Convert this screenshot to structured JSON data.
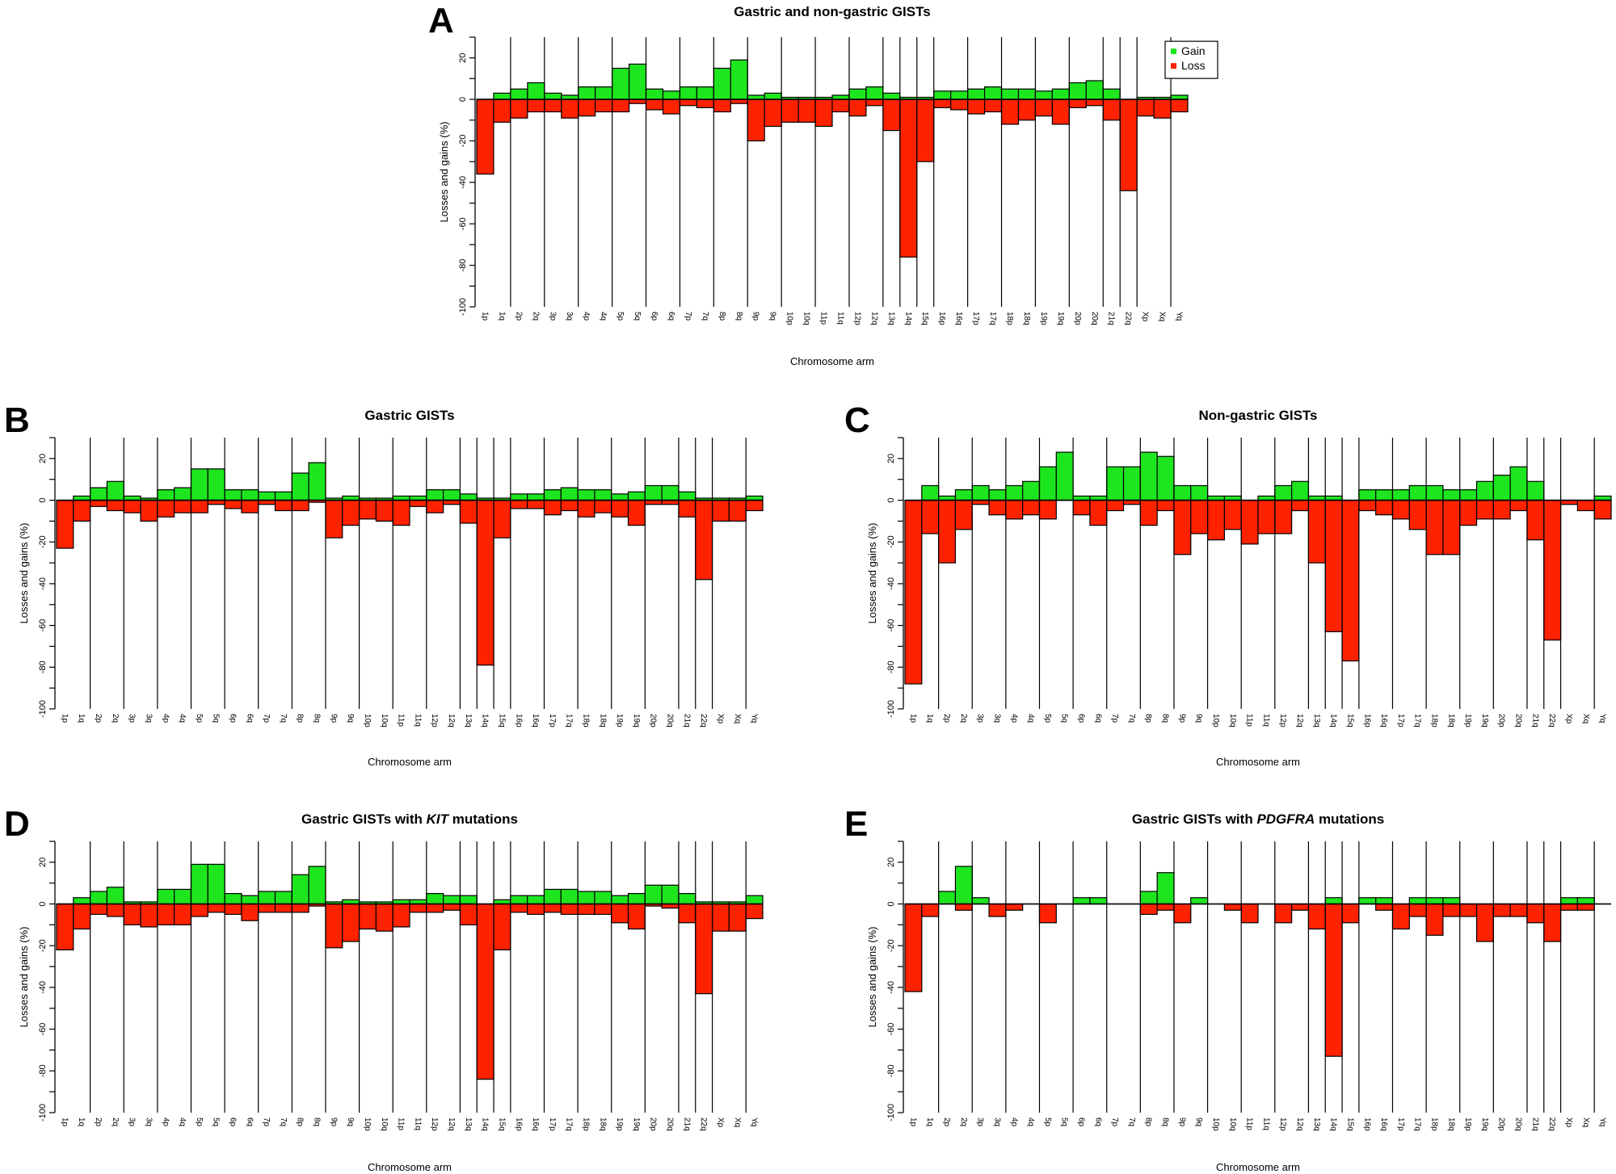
{
  "arms": [
    "1p",
    "1q",
    "2p",
    "2q",
    "3p",
    "3q",
    "4p",
    "4q",
    "5p",
    "5q",
    "6p",
    "6q",
    "7p",
    "7q",
    "8p",
    "8q",
    "9p",
    "9q",
    "10p",
    "10q",
    "11p",
    "11q",
    "12p",
    "12q",
    "13q",
    "14q",
    "15q",
    "16p",
    "16q",
    "17p",
    "17q",
    "18p",
    "18q",
    "19p",
    "19q",
    "20p",
    "20q",
    "21q",
    "22q",
    "Xp",
    "Xq",
    "Yq"
  ],
  "colors": {
    "gain": "#1ee61e",
    "loss": "#ff2200"
  },
  "chart_data": [
    {
      "panel": "A",
      "type": "bar",
      "title": {
        "pre": "Gastric and non-gastric GISTs",
        "italic": "",
        "post": ""
      },
      "xlabel": "Chromosome arm",
      "ylabel": "Losses and gains (%)",
      "ylim": [
        -100,
        30
      ],
      "yticks": [
        20,
        0,
        -20,
        -40,
        -60,
        -80,
        -100
      ],
      "legend": {
        "position": "top-right",
        "entries": [
          "Gain",
          "Loss"
        ]
      },
      "series": [
        {
          "name": "Gain",
          "values": [
            0,
            3,
            5,
            8,
            3,
            2,
            6,
            6,
            15,
            17,
            5,
            4,
            6,
            6,
            15,
            19,
            2,
            3,
            1,
            1,
            1,
            2,
            5,
            6,
            3,
            1,
            1,
            4,
            4,
            5,
            6,
            5,
            5,
            4,
            5,
            8,
            9,
            5,
            0,
            1,
            1,
            2
          ]
        },
        {
          "name": "Loss",
          "values": [
            -36,
            -11,
            -9,
            -6,
            -6,
            -9,
            -8,
            -6,
            -6,
            -2,
            -5,
            -7,
            -3,
            -4,
            -6,
            -2,
            -20,
            -13,
            -11,
            -11,
            -13,
            -6,
            -8,
            -3,
            -15,
            -76,
            -30,
            -4,
            -5,
            -7,
            -6,
            -12,
            -10,
            -8,
            -12,
            -4,
            -3,
            -10,
            -44,
            -8,
            -9,
            -6
          ]
        }
      ]
    },
    {
      "panel": "B",
      "type": "bar",
      "title": {
        "pre": "Gastric GISTs",
        "italic": "",
        "post": ""
      },
      "xlabel": "Chromosome arm",
      "ylabel": "Losses and gains (%)",
      "ylim": [
        -100,
        30
      ],
      "yticks": [
        20,
        0,
        -20,
        -40,
        -60,
        -80,
        -100
      ],
      "series": [
        {
          "name": "Gain",
          "values": [
            0,
            2,
            6,
            9,
            2,
            1,
            5,
            6,
            15,
            15,
            5,
            5,
            4,
            4,
            13,
            18,
            1,
            2,
            1,
            1,
            2,
            2,
            5,
            5,
            3,
            1,
            1,
            3,
            3,
            5,
            6,
            5,
            5,
            3,
            4,
            7,
            7,
            4,
            1,
            1,
            1,
            2
          ]
        },
        {
          "name": "Loss",
          "values": [
            -23,
            -10,
            -3,
            -5,
            -6,
            -10,
            -8,
            -6,
            -6,
            -2,
            -4,
            -6,
            -2,
            -5,
            -5,
            -1,
            -18,
            -12,
            -9,
            -10,
            -12,
            -3,
            -6,
            -2,
            -11,
            -79,
            -18,
            -4,
            -4,
            -7,
            -5,
            -8,
            -6,
            -8,
            -12,
            -2,
            -2,
            -8,
            -38,
            -10,
            -10,
            -5
          ]
        }
      ]
    },
    {
      "panel": "C",
      "type": "bar",
      "title": {
        "pre": "Non-gastric GISTs",
        "italic": "",
        "post": ""
      },
      "xlabel": "Chromosome arm",
      "ylabel": "Losses and gains (%)",
      "ylim": [
        -100,
        30
      ],
      "yticks": [
        20,
        0,
        -20,
        -40,
        -60,
        -80,
        -100
      ],
      "series": [
        {
          "name": "Gain",
          "values": [
            0,
            7,
            2,
            5,
            7,
            5,
            7,
            9,
            16,
            23,
            2,
            2,
            16,
            16,
            23,
            21,
            7,
            7,
            2,
            2,
            0,
            2,
            7,
            9,
            2,
            2,
            0,
            5,
            5,
            5,
            7,
            7,
            5,
            5,
            9,
            12,
            16,
            9,
            0,
            0,
            0,
            2
          ]
        },
        {
          "name": "Loss",
          "values": [
            -88,
            -16,
            -30,
            -14,
            -2,
            -7,
            -9,
            -7,
            -9,
            0,
            -7,
            -12,
            -5,
            -2,
            -12,
            -5,
            -26,
            -16,
            -19,
            -14,
            -21,
            -16,
            -16,
            -5,
            -30,
            -63,
            -77,
            -5,
            -7,
            -9,
            -14,
            -26,
            -26,
            -12,
            -9,
            -9,
            -5,
            -19,
            -67,
            -2,
            -5,
            -9
          ]
        }
      ]
    },
    {
      "panel": "D",
      "type": "bar",
      "title": {
        "pre": "Gastric GISTs with ",
        "italic": "KIT",
        "post": " mutations"
      },
      "xlabel": "Chromosome arm",
      "ylabel": "Losses and gains (%)",
      "ylim": [
        -100,
        30
      ],
      "yticks": [
        20,
        0,
        -20,
        -40,
        -60,
        -80,
        -100
      ],
      "series": [
        {
          "name": "Gain",
          "values": [
            0,
            3,
            6,
            8,
            1,
            1,
            7,
            7,
            19,
            19,
            5,
            4,
            6,
            6,
            14,
            18,
            1,
            2,
            1,
            1,
            2,
            2,
            5,
            4,
            4,
            0,
            2,
            4,
            4,
            7,
            7,
            6,
            6,
            4,
            5,
            9,
            9,
            5,
            1,
            1,
            1,
            4
          ]
        },
        {
          "name": "Loss",
          "values": [
            -22,
            -12,
            -5,
            -6,
            -10,
            -11,
            -10,
            -10,
            -6,
            -4,
            -5,
            -8,
            -4,
            -4,
            -4,
            -1,
            -21,
            -18,
            -12,
            -13,
            -11,
            -4,
            -4,
            -3,
            -10,
            -84,
            -22,
            -4,
            -5,
            -4,
            -5,
            -5,
            -5,
            -9,
            -12,
            -1,
            -2,
            -9,
            -43,
            -13,
            -13,
            -7
          ]
        }
      ]
    },
    {
      "panel": "E",
      "type": "bar",
      "title": {
        "pre": "Gastric GISTs with ",
        "italic": "PDGFRA",
        "post": " mutations"
      },
      "xlabel": "Chromosome arm",
      "ylabel": "Losses and gains (%)",
      "ylim": [
        -100,
        30
      ],
      "yticks": [
        20,
        0,
        -20,
        -40,
        -60,
        -80,
        -100
      ],
      "series": [
        {
          "name": "Gain",
          "values": [
            0,
            0,
            6,
            18,
            3,
            0,
            0,
            0,
            0,
            0,
            3,
            3,
            0,
            0,
            6,
            15,
            0,
            3,
            0,
            0,
            0,
            0,
            0,
            0,
            0,
            3,
            0,
            3,
            3,
            0,
            3,
            3,
            3,
            0,
            0,
            0,
            0,
            0,
            0,
            3,
            3,
            0
          ]
        },
        {
          "name": "Loss",
          "values": [
            -42,
            -6,
            0,
            -3,
            0,
            -6,
            -3,
            0,
            -9,
            0,
            0,
            0,
            0,
            0,
            -5,
            -3,
            -9,
            0,
            0,
            -3,
            -9,
            0,
            -9,
            -3,
            -12,
            -73,
            -9,
            0,
            -3,
            -12,
            -6,
            -15,
            -6,
            -6,
            -18,
            -6,
            -6,
            -9,
            -18,
            -3,
            -3,
            0
          ]
        }
      ]
    }
  ]
}
